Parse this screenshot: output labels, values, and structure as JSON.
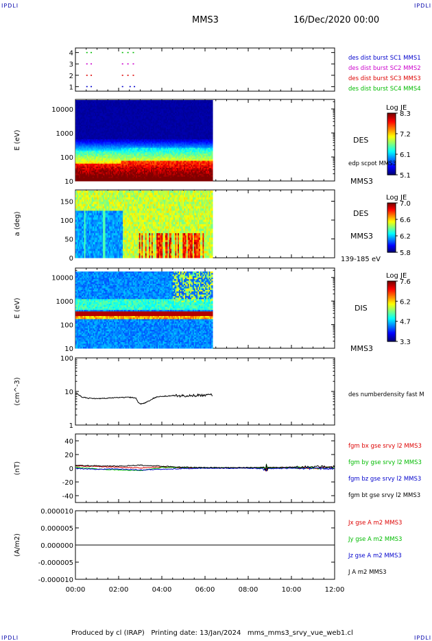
{
  "header": {
    "corner_left": "IPDLI",
    "corner_right": "IPDLI",
    "spacecraft": "MMS3",
    "date": "16/Dec/2020 00:00"
  },
  "footer": {
    "text": "Produced by cl (IRAP)   Printing date: 13/Jan/2024   mms_mms3_srvy_vue_web1.cl",
    "corner_left": "IPDLI",
    "corner_right": "IPDLI"
  },
  "colors": {
    "blue": "#0000cc",
    "magenta": "#cc00cc",
    "red": "#dd0000",
    "green": "#00bb00",
    "black": "#000000"
  },
  "time_axis": {
    "ticks": [
      "00:00",
      "02:00",
      "04:00",
      "06:00",
      "08:00",
      "10:00",
      "12:00"
    ],
    "range_hours": [
      0,
      12
    ],
    "data_end_hours": 6.35
  },
  "chart_data": [
    {
      "type": "scatter",
      "name": "burst",
      "yticks": [
        "4",
        "3",
        "2",
        "1"
      ],
      "ylim": [
        0.6,
        4.4
      ],
      "legend": [
        {
          "label": "des dist burst SC1 MMS1",
          "color": "#0000cc"
        },
        {
          "label": "des dist burst SC2 MMS2",
          "color": "#cc00cc"
        },
        {
          "label": "des dist burst SC3 MMS3",
          "color": "#dd0000"
        },
        {
          "label": "des dist burst SC4 MMS4",
          "color": "#00bb00"
        }
      ]
    },
    {
      "type": "heatmap",
      "name": "des-energy",
      "ylabel": "E (eV)",
      "yticks": [
        "10000",
        "1000",
        "100",
        "10"
      ],
      "ylog": true,
      "ylim": [
        10,
        25000
      ],
      "right_labels": [
        "DES",
        "edp scpot MMS3",
        "MMS3"
      ],
      "colorbar": {
        "title": "Log JE",
        "ticks": [
          "8.3",
          "7.2",
          "6.1",
          "5.1"
        ],
        "range": [
          5.1,
          8.3
        ]
      }
    },
    {
      "type": "heatmap",
      "name": "des-pitch",
      "ylabel": "a (deg)",
      "yticks": [
        "150",
        "100",
        "50",
        "0"
      ],
      "ylim": [
        0,
        180
      ],
      "right_labels": [
        "DES",
        "MMS3",
        "139-185 eV"
      ],
      "colorbar": {
        "title": "Log JE",
        "ticks": [
          "7.0",
          "6.6",
          "6.2",
          "5.8"
        ],
        "range": [
          5.8,
          7.0
        ]
      }
    },
    {
      "type": "heatmap",
      "name": "dis-energy",
      "ylabel": "E (eV)",
      "yticks": [
        "10000",
        "1000",
        "100",
        "10"
      ],
      "ylog": true,
      "ylim": [
        10,
        25000
      ],
      "right_labels": [
        "DIS",
        "MMS3"
      ],
      "colorbar": {
        "title": "Log JE",
        "ticks": [
          "7.6",
          "6.2",
          "4.7",
          "3.3"
        ],
        "range": [
          3.3,
          7.6
        ]
      }
    },
    {
      "type": "line",
      "name": "density",
      "ylabel": "(cm^-3)",
      "yticks": [
        "100",
        "10",
        "1"
      ],
      "ylog": true,
      "ylim": [
        1,
        100
      ],
      "series": [
        {
          "name": "des numberdensity fast M",
          "color": "#000000",
          "x": [
            0,
            0.3,
            0.6,
            1.0,
            1.5,
            2.0,
            2.5,
            2.8,
            2.9,
            3.0,
            3.2,
            3.4,
            3.6,
            3.8,
            4.0,
            4.3,
            4.6,
            5.0,
            5.5,
            6.0,
            6.35
          ],
          "y": [
            9.0,
            6.8,
            6.3,
            6.1,
            6.3,
            6.6,
            6.7,
            6.4,
            4.6,
            4.3,
            4.5,
            5.2,
            6.2,
            6.9,
            7.2,
            7.3,
            7.6,
            7.4,
            7.6,
            7.7,
            7.8
          ]
        }
      ]
    },
    {
      "type": "line",
      "name": "magnetic-field",
      "ylabel": "(nT)",
      "yticks": [
        "40",
        "20",
        "0",
        "-20",
        "-40"
      ],
      "ylim": [
        -50,
        50
      ],
      "series": [
        {
          "name": "fgm bx gse srvy l2 MMS3",
          "color": "#dd0000",
          "x": [
            0,
            1,
            2,
            3,
            4,
            5,
            6,
            7,
            8,
            9,
            10,
            11,
            12
          ],
          "y": [
            3.5,
            2.5,
            1.5,
            0.5,
            2.0,
            0.5,
            0.5,
            0.5,
            0.5,
            0.8,
            0.8,
            0.5,
            1.0
          ]
        },
        {
          "name": "fgm by gse srvy l2 MMS3",
          "color": "#00bb00",
          "x": [
            0,
            1,
            2,
            3,
            4,
            5,
            6,
            7,
            8,
            9,
            10,
            11,
            12
          ],
          "y": [
            1.5,
            -1.0,
            -2.5,
            -3.5,
            1.0,
            1.0,
            0.5,
            0.5,
            0.5,
            0.5,
            0.5,
            0.5,
            0.5
          ]
        },
        {
          "name": "fgm bz gse srvy l2 MMS3",
          "color": "#0000cc",
          "x": [
            0,
            1,
            2,
            3,
            4,
            5,
            6,
            7,
            8,
            9,
            10,
            11,
            12
          ],
          "y": [
            -0.5,
            -1.5,
            -1.0,
            -2.5,
            -1.5,
            -0.5,
            0.0,
            0.0,
            0.0,
            -0.5,
            0.0,
            0.0,
            -0.5
          ]
        },
        {
          "name": "fgm bt gse srvy l2 MMS3",
          "color": "#000000",
          "x": [
            0,
            1,
            2,
            3,
            4,
            5,
            6,
            7,
            8,
            9,
            10,
            11,
            12
          ],
          "y": [
            4.0,
            3.5,
            3.0,
            4.5,
            3.0,
            1.5,
            1.0,
            1.0,
            1.0,
            1.2,
            1.5,
            2.0,
            2.5
          ]
        }
      ]
    },
    {
      "type": "line",
      "name": "current-density",
      "ylabel": "(A/m2)",
      "yticks": [
        "0.000010",
        "0.000005",
        "0.000000",
        "-0.000005",
        "-0.000010"
      ],
      "ylim": [
        -1e-05,
        1e-05
      ],
      "series": [
        {
          "name": "Jx gse A m2 MMS3",
          "color": "#dd0000",
          "x": [
            0,
            12
          ],
          "y": [
            0,
            0
          ]
        },
        {
          "name": "Jy gse A m2 MMS3",
          "color": "#00bb00",
          "x": [
            0,
            12
          ],
          "y": [
            0,
            0
          ]
        },
        {
          "name": "Jz gse A m2 MMS3",
          "color": "#0000cc",
          "x": [
            0,
            12
          ],
          "y": [
            0,
            0
          ]
        },
        {
          "name": "J A m2 MMS3",
          "color": "#000000",
          "x": [
            0,
            12
          ],
          "y": [
            0,
            0
          ]
        }
      ]
    }
  ]
}
